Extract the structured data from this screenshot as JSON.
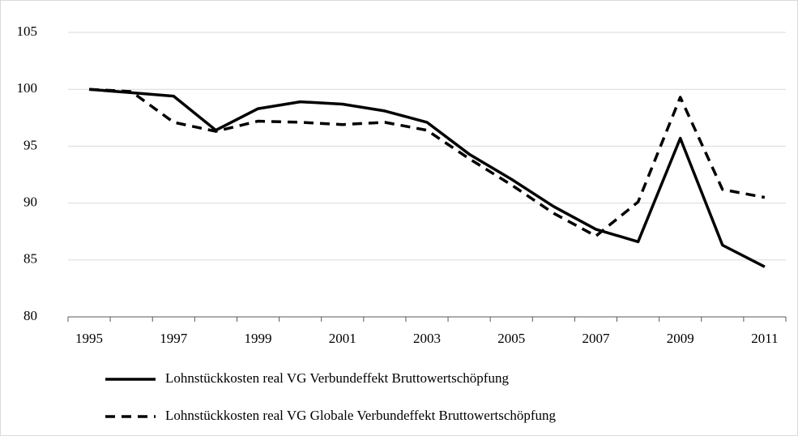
{
  "chart_data": {
    "type": "line",
    "categories": [
      "1995",
      null,
      "1997",
      null,
      "1999",
      null,
      "2001",
      null,
      "2003",
      null,
      "2005",
      null,
      "2007",
      null,
      "2009",
      null,
      "2011"
    ],
    "series": [
      {
        "name": "Lohnstückkosten real VG Verbundeffekt Bruttowertschöpfung",
        "color": "#000000",
        "dash": "solid",
        "values": [
          100,
          99.7,
          99.4,
          96.4,
          98.3,
          98.9,
          98.7,
          98.1,
          97.1,
          94.3,
          92.1,
          89.7,
          87.7,
          86.6,
          95.7,
          86.3,
          84.4
        ]
      },
      {
        "name": "Lohnstückkosten real VG Globale Verbundeffekt Bruttowertschöpfung",
        "color": "#000000",
        "dash": "dashed",
        "values": [
          100,
          99.8,
          97.1,
          96.3,
          97.2,
          97.1,
          96.9,
          97.1,
          96.4,
          93.9,
          91.6,
          89.1,
          87.1,
          90.1,
          99.3,
          91.2,
          90.5
        ]
      }
    ],
    "ylim": [
      80,
      105
    ],
    "yticks": [
      80,
      85,
      90,
      95,
      100,
      105
    ],
    "grid": true,
    "legend": "bottom"
  }
}
